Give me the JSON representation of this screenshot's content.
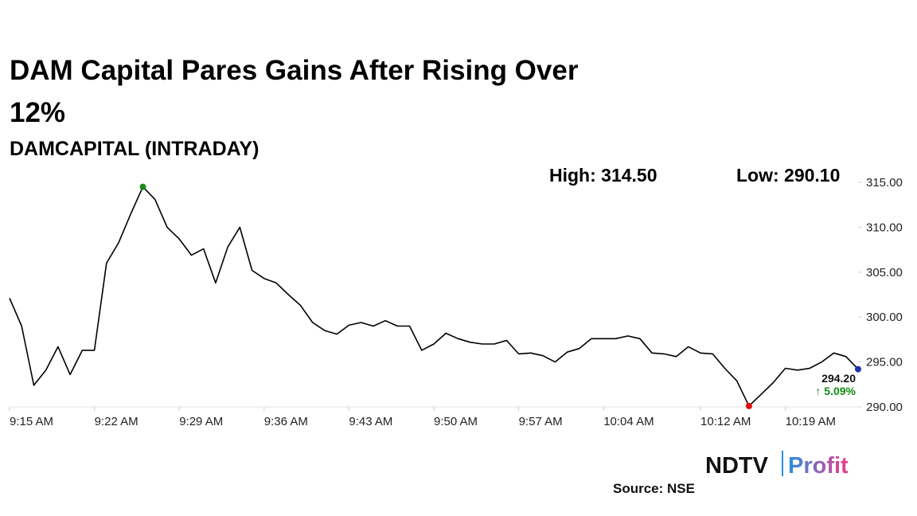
{
  "chart_data": {
    "type": "line",
    "title": "DAM Capital Pares Gains After Rising Over 12%",
    "subtitle": "DAMCAPITAL (INTRADAY)",
    "annotations": [
      "High: 314.50",
      "Low: 290.10"
    ],
    "last_label": "294.20",
    "change_label": "↑ 5.09%",
    "source": "Source: NSE",
    "logo": {
      "brand": "NDTV",
      "product": "Profit"
    },
    "color": "#000000",
    "high_color": "#1a8a1a",
    "low_color": "#e01010",
    "last_color": "#2233aa",
    "change_color": "#138a13",
    "x": [
      "9:15",
      "9:16",
      "9:17",
      "9:18",
      "9:19",
      "9:20",
      "9:21",
      "9:22",
      "9:23",
      "9:24",
      "9:25",
      "9:26",
      "9:27",
      "9:28",
      "9:29",
      "9:30",
      "9:31",
      "9:32",
      "9:33",
      "9:34",
      "9:35",
      "9:36",
      "9:37",
      "9:38",
      "9:39",
      "9:40",
      "9:41",
      "9:42",
      "9:43",
      "9:44",
      "9:45",
      "9:46",
      "9:47",
      "9:48",
      "9:49",
      "9:50",
      "9:51",
      "9:52",
      "9:53",
      "9:54",
      "9:55",
      "9:56",
      "9:57",
      "9:58",
      "9:59",
      "10:00",
      "10:01",
      "10:02",
      "10:03",
      "10:04",
      "10:05",
      "10:06",
      "10:07",
      "10:08",
      "10:09",
      "10:10",
      "10:11",
      "10:12",
      "10:13",
      "10:14",
      "10:15",
      "10:16",
      "10:17",
      "10:18",
      "10:19",
      "10:20",
      "10:21",
      "10:22",
      "10:23",
      "10:24",
      "10:25"
    ],
    "values": [
      302.1,
      299.0,
      292.4,
      294.1,
      296.7,
      293.6,
      296.3,
      296.3,
      306.0,
      308.3,
      311.5,
      314.5,
      313.1,
      310.0,
      308.7,
      306.9,
      307.6,
      303.8,
      307.8,
      310.0,
      305.2,
      304.3,
      303.8,
      302.5,
      301.3,
      299.4,
      298.5,
      298.1,
      299.1,
      299.4,
      299.0,
      299.6,
      299.0,
      299.0,
      296.3,
      297.0,
      298.2,
      297.6,
      297.2,
      297.0,
      297.0,
      297.4,
      295.9,
      296.0,
      295.7,
      295.0,
      296.1,
      296.5,
      297.6,
      297.6,
      297.6,
      297.9,
      297.6,
      296.0,
      295.9,
      295.6,
      296.7,
      296.0,
      295.9,
      294.3,
      292.9,
      290.1,
      291.4,
      292.7,
      294.3,
      294.1,
      294.3,
      295.0,
      296.0,
      295.6,
      294.2
    ],
    "xlim": [
      "9:15",
      "10:25"
    ],
    "xticks": [
      {
        "value": "9:15",
        "label": "9:15 AM"
      },
      {
        "value": "9:22",
        "label": "9:22 AM"
      },
      {
        "value": "9:29",
        "label": "9:29 AM"
      },
      {
        "value": "9:36",
        "label": "9:36 AM"
      },
      {
        "value": "9:43",
        "label": "9:43 AM"
      },
      {
        "value": "9:50",
        "label": "9:50 AM"
      },
      {
        "value": "9:57",
        "label": "9:57 AM"
      },
      {
        "value": "10:04",
        "label": "10:04 AM"
      },
      {
        "value": "10:12",
        "label": "10:12 AM"
      },
      {
        "value": "10:19",
        "label": "10:19 AM"
      }
    ],
    "ylim": [
      290,
      315
    ],
    "yticks": [
      {
        "value": 290,
        "label": "290.00"
      },
      {
        "value": 295,
        "label": "295.00"
      },
      {
        "value": 300,
        "label": "300.00"
      },
      {
        "value": 305,
        "label": "305.00"
      },
      {
        "value": 310,
        "label": "310.00"
      },
      {
        "value": 315,
        "label": "315.00"
      }
    ]
  }
}
